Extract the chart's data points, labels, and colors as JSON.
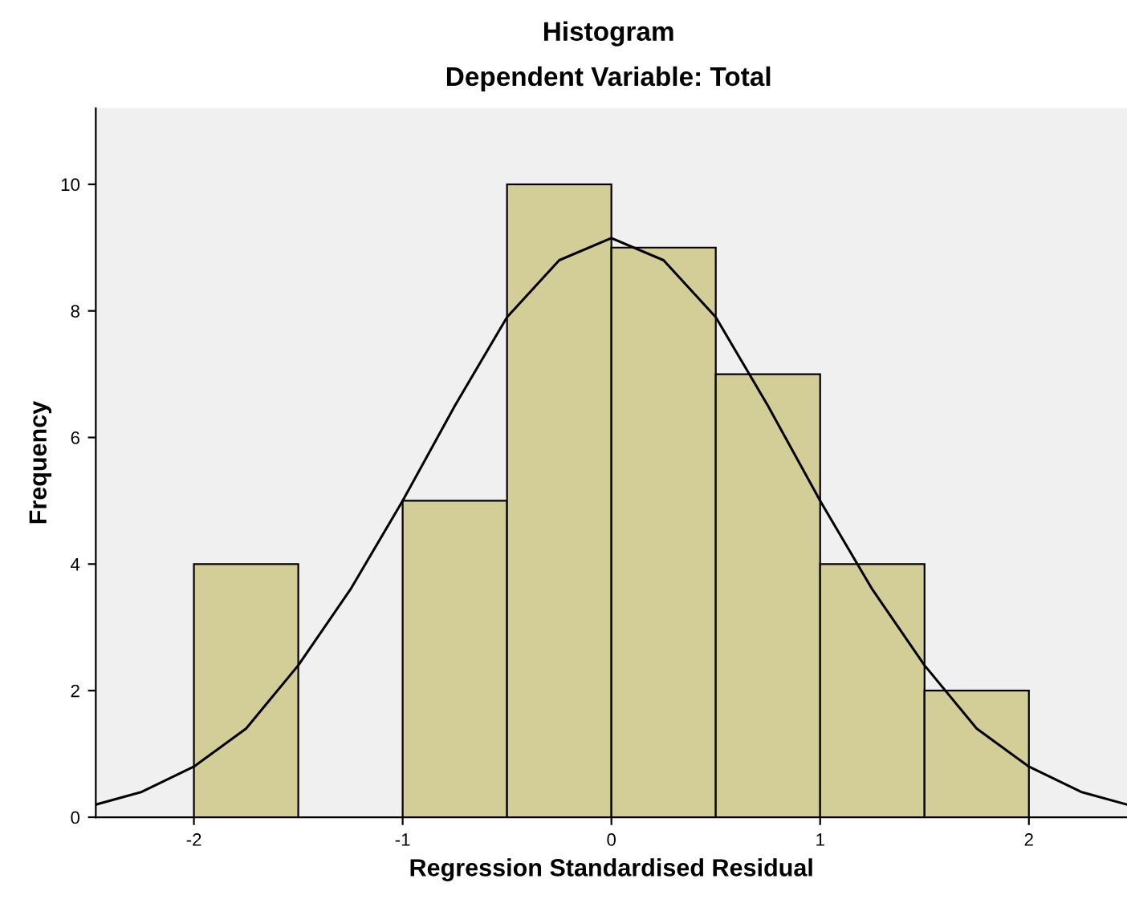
{
  "chart_data": {
    "type": "histogram",
    "title": "Histogram",
    "subtitle": "Dependent Variable: Total",
    "xlabel": "Regression Standardised Residual",
    "ylabel": "Frequency",
    "bins": [
      -2,
      -1.5,
      -1,
      -0.5,
      0,
      0.5,
      1,
      1.5,
      2
    ],
    "values": [
      4,
      0,
      5,
      10,
      9,
      7,
      4,
      2
    ],
    "color": "#d3ce97",
    "series": [
      {
        "type": "line",
        "color": "#000000",
        "x": [
          -2.47,
          -2.25,
          -2,
          -1.75,
          -1.5,
          -1.25,
          -1,
          -0.75,
          -0.5,
          -0.25,
          0,
          0.25,
          0.5,
          0.75,
          1,
          1.25,
          1.5,
          1.75,
          2,
          2.25,
          2.47
        ],
        "values": [
          0.2,
          0.4,
          0.8,
          1.4,
          2.4,
          3.6,
          5.0,
          6.5,
          7.9,
          8.8,
          9.15,
          8.8,
          7.9,
          6.5,
          5.0,
          3.6,
          2.4,
          1.4,
          0.8,
          0.4,
          0.2
        ]
      }
    ],
    "xlim": [
      -2.47,
      2.47
    ],
    "xticks": [
      -2,
      -1,
      0,
      1,
      2
    ],
    "ylim": [
      0,
      11.2
    ],
    "yticks": [
      0,
      2,
      4,
      6,
      8,
      10
    ],
    "grid": false,
    "legend": false
  }
}
